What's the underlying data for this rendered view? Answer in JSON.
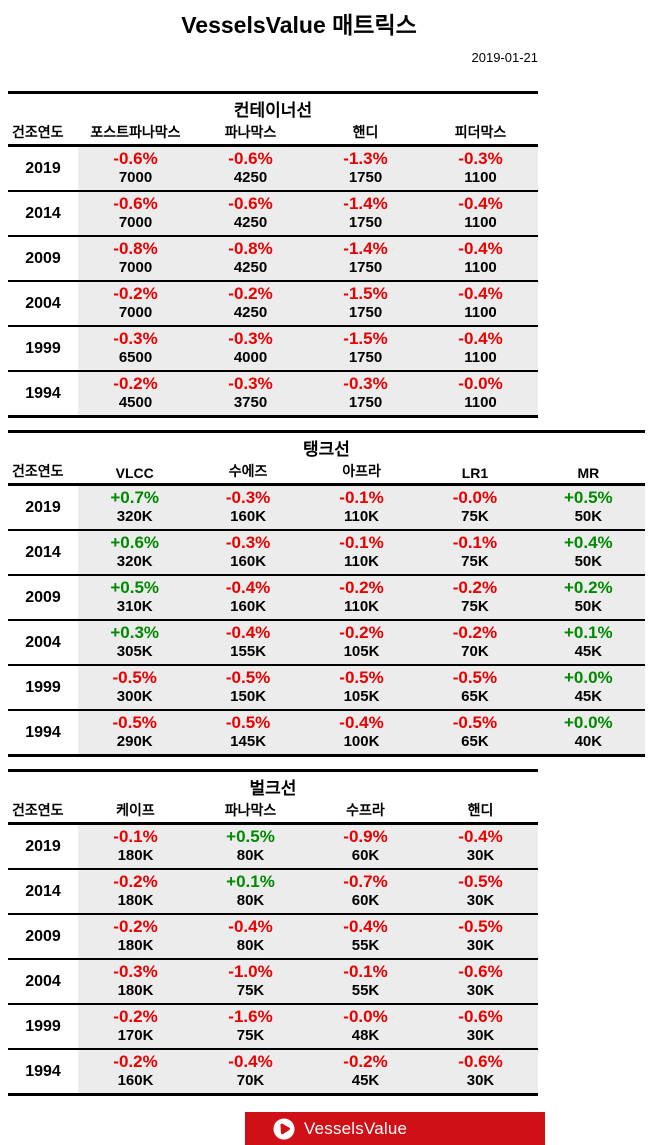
{
  "header": {
    "title": "VesselsValue 매트릭스",
    "date": "2019-01-21"
  },
  "colors": {
    "positive": "#008a00",
    "negative": "#ea0000",
    "row_bg": "#ececec",
    "banner": "#cf1117"
  },
  "tables": [
    {
      "group_title": "컨테이너선",
      "year_header": "건조연도",
      "columns": [
        "포스트파나막스",
        "파나막스",
        "핸디",
        "피더막스"
      ],
      "rows": [
        {
          "year": "2019",
          "cells": [
            {
              "pct": "-0.6%",
              "val": "7000"
            },
            {
              "pct": "-0.6%",
              "val": "4250"
            },
            {
              "pct": "-1.3%",
              "val": "1750"
            },
            {
              "pct": "-0.3%",
              "val": "1100"
            }
          ]
        },
        {
          "year": "2014",
          "cells": [
            {
              "pct": "-0.6%",
              "val": "7000"
            },
            {
              "pct": "-0.6%",
              "val": "4250"
            },
            {
              "pct": "-1.4%",
              "val": "1750"
            },
            {
              "pct": "-0.4%",
              "val": "1100"
            }
          ]
        },
        {
          "year": "2009",
          "cells": [
            {
              "pct": "-0.8%",
              "val": "7000"
            },
            {
              "pct": "-0.8%",
              "val": "4250"
            },
            {
              "pct": "-1.4%",
              "val": "1750"
            },
            {
              "pct": "-0.4%",
              "val": "1100"
            }
          ]
        },
        {
          "year": "2004",
          "cells": [
            {
              "pct": "-0.2%",
              "val": "7000"
            },
            {
              "pct": "-0.2%",
              "val": "4250"
            },
            {
              "pct": "-1.5%",
              "val": "1750"
            },
            {
              "pct": "-0.4%",
              "val": "1100"
            }
          ]
        },
        {
          "year": "1999",
          "cells": [
            {
              "pct": "-0.3%",
              "val": "6500"
            },
            {
              "pct": "-0.3%",
              "val": "4000"
            },
            {
              "pct": "-1.5%",
              "val": "1750"
            },
            {
              "pct": "-0.4%",
              "val": "1100"
            }
          ]
        },
        {
          "year": "1994",
          "cells": [
            {
              "pct": "-0.2%",
              "val": "4500"
            },
            {
              "pct": "-0.3%",
              "val": "3750"
            },
            {
              "pct": "-0.3%",
              "val": "1750"
            },
            {
              "pct": "-0.0%",
              "val": "1100"
            }
          ]
        }
      ]
    },
    {
      "group_title": "탱크선",
      "year_header": "건조연도",
      "columns": [
        "VLCC",
        "수에즈",
        "아프라",
        "LR1",
        "MR"
      ],
      "rows": [
        {
          "year": "2019",
          "cells": [
            {
              "pct": "+0.7%",
              "val": "320K"
            },
            {
              "pct": "-0.3%",
              "val": "160K"
            },
            {
              "pct": "-0.1%",
              "val": "110K"
            },
            {
              "pct": "-0.0%",
              "val": "75K"
            },
            {
              "pct": "+0.5%",
              "val": "50K"
            }
          ]
        },
        {
          "year": "2014",
          "cells": [
            {
              "pct": "+0.6%",
              "val": "320K"
            },
            {
              "pct": "-0.3%",
              "val": "160K"
            },
            {
              "pct": "-0.1%",
              "val": "110K"
            },
            {
              "pct": "-0.1%",
              "val": "75K"
            },
            {
              "pct": "+0.4%",
              "val": "50K"
            }
          ]
        },
        {
          "year": "2009",
          "cells": [
            {
              "pct": "+0.5%",
              "val": "310K"
            },
            {
              "pct": "-0.4%",
              "val": "160K"
            },
            {
              "pct": "-0.2%",
              "val": "110K"
            },
            {
              "pct": "-0.2%",
              "val": "75K"
            },
            {
              "pct": "+0.2%",
              "val": "50K"
            }
          ]
        },
        {
          "year": "2004",
          "cells": [
            {
              "pct": "+0.3%",
              "val": "305K"
            },
            {
              "pct": "-0.4%",
              "val": "155K"
            },
            {
              "pct": "-0.2%",
              "val": "105K"
            },
            {
              "pct": "-0.2%",
              "val": "70K"
            },
            {
              "pct": "+0.1%",
              "val": "45K"
            }
          ]
        },
        {
          "year": "1999",
          "cells": [
            {
              "pct": "-0.5%",
              "val": "300K"
            },
            {
              "pct": "-0.5%",
              "val": "150K"
            },
            {
              "pct": "-0.5%",
              "val": "105K"
            },
            {
              "pct": "-0.5%",
              "val": "65K"
            },
            {
              "pct": "+0.0%",
              "val": "45K"
            }
          ]
        },
        {
          "year": "1994",
          "cells": [
            {
              "pct": "-0.5%",
              "val": "290K"
            },
            {
              "pct": "-0.5%",
              "val": "145K"
            },
            {
              "pct": "-0.4%",
              "val": "100K"
            },
            {
              "pct": "-0.5%",
              "val": "65K"
            },
            {
              "pct": "+0.0%",
              "val": "40K"
            }
          ]
        }
      ]
    },
    {
      "group_title": "벌크선",
      "year_header": "건조연도",
      "columns": [
        "케이프",
        "파나막스",
        "수프라",
        "핸디"
      ],
      "rows": [
        {
          "year": "2019",
          "cells": [
            {
              "pct": "-0.1%",
              "val": "180K"
            },
            {
              "pct": "+0.5%",
              "val": "80K"
            },
            {
              "pct": "-0.9%",
              "val": "60K"
            },
            {
              "pct": "-0.4%",
              "val": "30K"
            }
          ]
        },
        {
          "year": "2014",
          "cells": [
            {
              "pct": "-0.2%",
              "val": "180K"
            },
            {
              "pct": "+0.1%",
              "val": "80K"
            },
            {
              "pct": "-0.7%",
              "val": "60K"
            },
            {
              "pct": "-0.5%",
              "val": "30K"
            }
          ]
        },
        {
          "year": "2009",
          "cells": [
            {
              "pct": "-0.2%",
              "val": "180K"
            },
            {
              "pct": "-0.4%",
              "val": "80K"
            },
            {
              "pct": "-0.4%",
              "val": "55K"
            },
            {
              "pct": "-0.5%",
              "val": "30K"
            }
          ]
        },
        {
          "year": "2004",
          "cells": [
            {
              "pct": "-0.3%",
              "val": "180K"
            },
            {
              "pct": "-1.0%",
              "val": "75K"
            },
            {
              "pct": "-0.1%",
              "val": "55K"
            },
            {
              "pct": "-0.6%",
              "val": "30K"
            }
          ]
        },
        {
          "year": "1999",
          "cells": [
            {
              "pct": "-0.2%",
              "val": "170K"
            },
            {
              "pct": "-1.6%",
              "val": "75K"
            },
            {
              "pct": "-0.0%",
              "val": "48K"
            },
            {
              "pct": "-0.6%",
              "val": "30K"
            }
          ]
        },
        {
          "year": "1994",
          "cells": [
            {
              "pct": "-0.2%",
              "val": "160K"
            },
            {
              "pct": "-0.4%",
              "val": "70K"
            },
            {
              "pct": "-0.2%",
              "val": "45K"
            },
            {
              "pct": "-0.6%",
              "val": "30K"
            }
          ]
        }
      ]
    }
  ],
  "footer": {
    "brand": "VesselsValue",
    "logo_icon": "play-circle-icon"
  }
}
